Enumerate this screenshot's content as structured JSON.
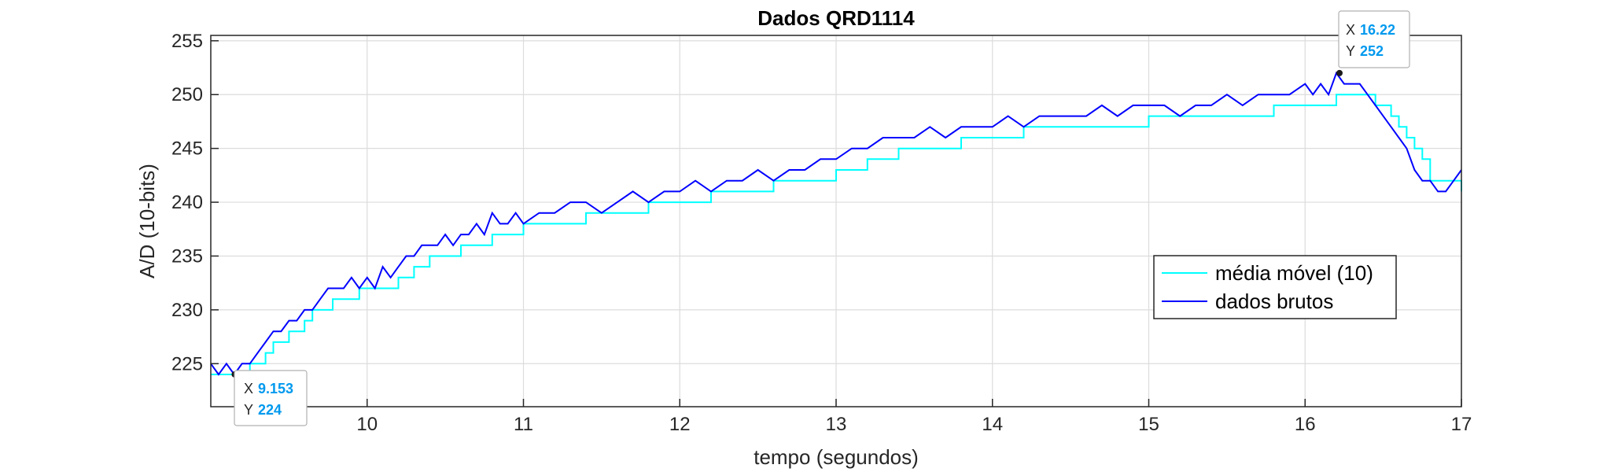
{
  "chart_data": {
    "type": "line",
    "title": "Dados QRD1114",
    "xlabel": "tempo (segundos)",
    "ylabel": "A/D (10-bits)",
    "xlim": [
      9.0,
      17.0
    ],
    "ylim": [
      221,
      255.5
    ],
    "xticks": [
      10,
      11,
      12,
      13,
      14,
      15,
      16,
      17
    ],
    "yticks": [
      225,
      230,
      235,
      240,
      245,
      250,
      255
    ],
    "grid": true,
    "legend_position": "lower-right",
    "series": [
      {
        "name": "média móvel (10)",
        "color": "#00FFFF",
        "x": [
          9.0,
          9.2,
          9.25,
          9.35,
          9.4,
          9.5,
          9.55,
          9.6,
          9.65,
          9.7,
          9.78,
          9.85,
          9.95,
          10.1,
          10.2,
          10.3,
          10.4,
          10.5,
          10.6,
          10.7,
          10.8,
          10.9,
          11.0,
          11.2,
          11.4,
          11.6,
          11.8,
          12.0,
          12.2,
          12.4,
          12.6,
          12.8,
          13.0,
          13.2,
          13.4,
          13.6,
          13.8,
          14.0,
          14.2,
          14.5,
          14.8,
          15.0,
          15.2,
          15.5,
          15.8,
          16.0,
          16.2,
          16.35,
          16.45,
          16.55,
          16.6,
          16.65,
          16.7,
          16.75,
          16.8,
          17.0
        ],
        "y": [
          224,
          224,
          225,
          226,
          227,
          228,
          228,
          229,
          230,
          230,
          231,
          231,
          232,
          232,
          233,
          234,
          235,
          235,
          236,
          236,
          237,
          237,
          238,
          238,
          239,
          239,
          240,
          240,
          241,
          241,
          242,
          242,
          243,
          244,
          245,
          245,
          246,
          246,
          247,
          247,
          247,
          248,
          248,
          248,
          249,
          249,
          250,
          250,
          249,
          248,
          247,
          246,
          245,
          244,
          242,
          241
        ]
      },
      {
        "name": "dados brutos",
        "color": "#0000FF",
        "x": [
          9.0,
          9.05,
          9.1,
          9.15,
          9.2,
          9.25,
          9.3,
          9.35,
          9.4,
          9.45,
          9.5,
          9.55,
          9.6,
          9.65,
          9.7,
          9.75,
          9.8,
          9.85,
          9.9,
          9.95,
          10.0,
          10.05,
          10.1,
          10.15,
          10.2,
          10.25,
          10.3,
          10.35,
          10.4,
          10.45,
          10.5,
          10.55,
          10.6,
          10.65,
          10.7,
          10.75,
          10.8,
          10.85,
          10.9,
          10.95,
          11.0,
          11.1,
          11.2,
          11.3,
          11.4,
          11.5,
          11.6,
          11.7,
          11.8,
          11.9,
          12.0,
          12.1,
          12.2,
          12.3,
          12.4,
          12.5,
          12.6,
          12.7,
          12.8,
          12.9,
          13.0,
          13.1,
          13.2,
          13.3,
          13.4,
          13.5,
          13.6,
          13.7,
          13.8,
          13.9,
          14.0,
          14.1,
          14.2,
          14.3,
          14.4,
          14.5,
          14.6,
          14.7,
          14.8,
          14.9,
          15.0,
          15.1,
          15.2,
          15.3,
          15.4,
          15.5,
          15.6,
          15.7,
          15.8,
          15.9,
          16.0,
          16.05,
          16.1,
          16.15,
          16.2,
          16.25,
          16.3,
          16.35,
          16.4,
          16.45,
          16.5,
          16.55,
          16.6,
          16.65,
          16.7,
          16.75,
          16.8,
          16.85,
          16.9,
          16.95,
          17.0
        ],
        "y": [
          225,
          224,
          225,
          224,
          225,
          225,
          226,
          227,
          228,
          228,
          229,
          229,
          230,
          230,
          231,
          232,
          232,
          232,
          233,
          232,
          233,
          232,
          234,
          233,
          234,
          235,
          235,
          236,
          236,
          236,
          237,
          236,
          237,
          237,
          238,
          237,
          239,
          238,
          238,
          239,
          238,
          239,
          239,
          240,
          240,
          239,
          240,
          241,
          240,
          241,
          241,
          242,
          241,
          242,
          242,
          243,
          242,
          243,
          243,
          244,
          244,
          245,
          245,
          246,
          246,
          246,
          247,
          246,
          247,
          247,
          247,
          248,
          247,
          248,
          248,
          248,
          248,
          249,
          248,
          249,
          249,
          249,
          248,
          249,
          249,
          250,
          249,
          250,
          250,
          250,
          251,
          250,
          251,
          250,
          252,
          251,
          251,
          251,
          250,
          249,
          248,
          247,
          246,
          245,
          243,
          242,
          242,
          241,
          241,
          242,
          243
        ]
      }
    ]
  },
  "datatips": [
    {
      "x_label": "X",
      "x_value": "9.153",
      "y_label": "Y",
      "y_value": "224",
      "x": 9.153,
      "y": 224
    },
    {
      "x_label": "X",
      "x_value": "16.22",
      "y_label": "Y",
      "y_value": "252",
      "x": 16.22,
      "y": 252
    }
  ]
}
